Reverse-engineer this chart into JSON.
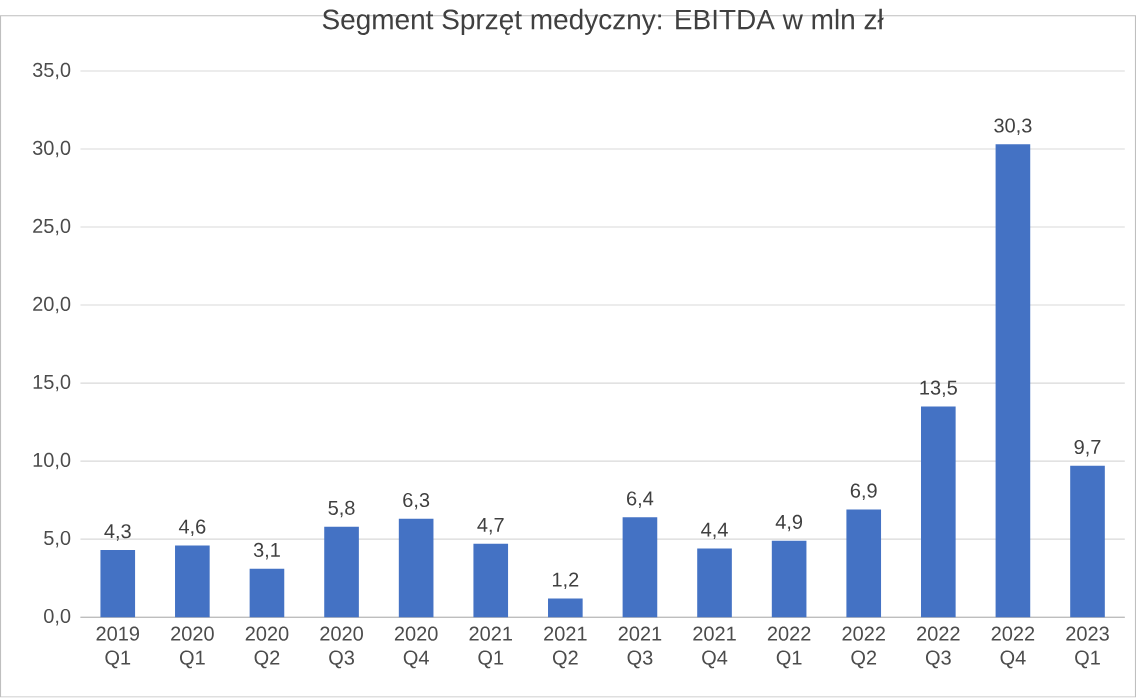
{
  "chart_data": {
    "type": "bar",
    "title": "Segment Sprzęt medyczny: EBITDA w mln zł",
    "categories": [
      "2019 Q1",
      "2020 Q1",
      "2020 Q2",
      "2020 Q3",
      "2020 Q4",
      "2021 Q1",
      "2021 Q2",
      "2021 Q3",
      "2021 Q4",
      "2022 Q1",
      "2022 Q2",
      "2022 Q3",
      "2022 Q4",
      "2023 Q1"
    ],
    "values": [
      4.3,
      4.6,
      3.1,
      5.8,
      6.3,
      4.7,
      1.2,
      6.4,
      4.4,
      4.9,
      6.9,
      13.5,
      30.3,
      9.7
    ],
    "value_labels": [
      "4,3",
      "4,6",
      "3,1",
      "5,8",
      "6,3",
      "4,7",
      "1,2",
      "6,4",
      "4,4",
      "4,9",
      "6,9",
      "13,5",
      "30,3",
      "9,7"
    ],
    "color": "#4472c4",
    "ylim": [
      0,
      35
    ],
    "yticks": [
      {
        "value": 0,
        "label": "0,0"
      },
      {
        "value": 5,
        "label": "5,0"
      },
      {
        "value": 10,
        "label": "10,0"
      },
      {
        "value": 15,
        "label": "15,0"
      },
      {
        "value": 20,
        "label": "20,0"
      },
      {
        "value": 25,
        "label": "25,0"
      },
      {
        "value": 30,
        "label": "30,0"
      },
      {
        "value": 35,
        "label": "35,0"
      }
    ],
    "grid": "y"
  }
}
